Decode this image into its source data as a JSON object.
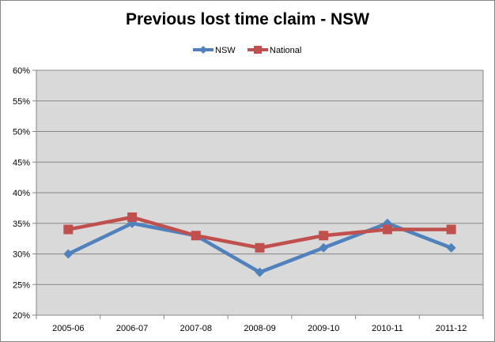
{
  "chart_data": {
    "type": "line",
    "title": "Previous lost time claim - NSW",
    "categories": [
      "2005-06",
      "2006-07",
      "2007-08",
      "2008-09",
      "2009-10",
      "2010-11",
      "2011-12"
    ],
    "series": [
      {
        "name": "NSW",
        "values": [
          30,
          35,
          33,
          27,
          31,
          35,
          31
        ],
        "color": "#4F81BD",
        "marker": "diamond"
      },
      {
        "name": "National",
        "values": [
          34,
          36,
          33,
          31,
          33,
          34,
          34
        ],
        "color": "#C0504D",
        "marker": "square"
      }
    ],
    "ylim": [
      20,
      60
    ],
    "y_ticks": [
      "20%",
      "25%",
      "30%",
      "35%",
      "40%",
      "45%",
      "50%",
      "55%",
      "60%"
    ],
    "y_unit": "%",
    "grid": true,
    "legend_position": "top",
    "plot_background": "#D9D9D9"
  }
}
